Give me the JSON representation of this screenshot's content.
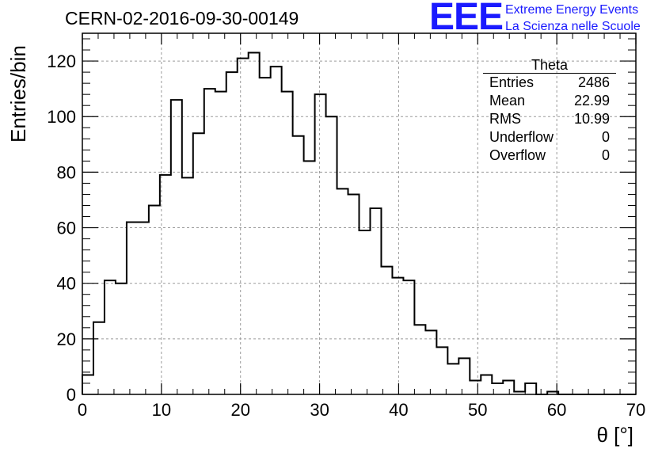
{
  "header": {
    "run_title": "CERN-02-2016-09-30-00149",
    "logo_mark": "EEE",
    "logo_line1": "Extreme Energy Events",
    "logo_line2": "La Scienza nelle Scuole"
  },
  "colors": {
    "logo": "#1a1aff",
    "histogram": "#000000",
    "grid": "#9a9a9a"
  },
  "stats_box": {
    "title": "Theta",
    "rows": [
      {
        "label": "Entries",
        "value": "2486"
      },
      {
        "label": "Mean",
        "value": "22.99"
      },
      {
        "label": "RMS",
        "value": "10.99"
      },
      {
        "label": "Underflow",
        "value": "0"
      },
      {
        "label": "Overflow",
        "value": "0"
      }
    ]
  },
  "chart_data": {
    "type": "bar",
    "style": "step-histogram",
    "xlabel": "θ [°]",
    "ylabel": "Entries/bin",
    "xlim": [
      0,
      70
    ],
    "ylim": [
      0,
      130
    ],
    "grid": true,
    "x_ticks": [
      "0",
      "10",
      "20",
      "30",
      "40",
      "50",
      "60",
      "70"
    ],
    "y_ticks": [
      "0",
      "20",
      "40",
      "60",
      "80",
      "100",
      "120"
    ],
    "bin_width": 1.4,
    "values": [
      7,
      26,
      41,
      40,
      62,
      62,
      68,
      79,
      106,
      78,
      94,
      110,
      109,
      116,
      121,
      123,
      114,
      118,
      109,
      93,
      84,
      108,
      100,
      74,
      72,
      59,
      67,
      46,
      42,
      41,
      25,
      23,
      17,
      11,
      13,
      5,
      7,
      4,
      5,
      1,
      4,
      0,
      1,
      0,
      0,
      0,
      0,
      0,
      0,
      0
    ]
  }
}
